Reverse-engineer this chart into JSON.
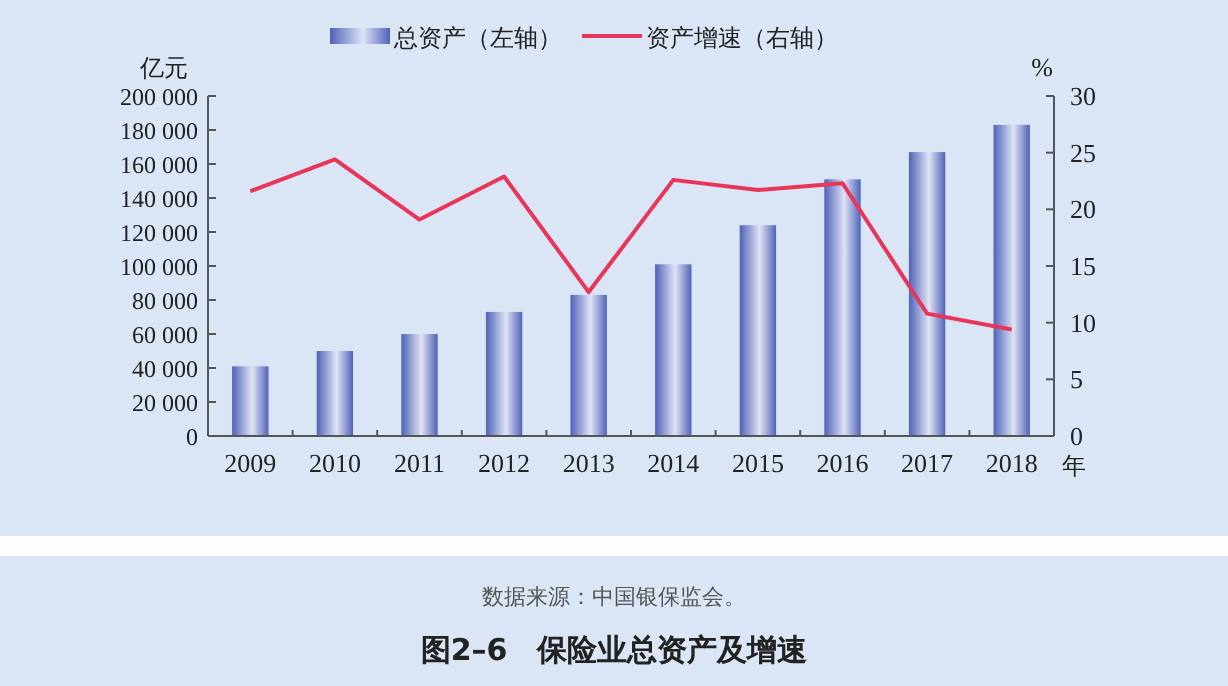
{
  "chart_data": {
    "type": "bar",
    "title": "图2–6　保险业总资产及增速",
    "annotations": [
      "数据来源：中国银保监会。"
    ],
    "categories": [
      "2009",
      "2010",
      "2011",
      "2012",
      "2013",
      "2014",
      "2015",
      "2016",
      "2017",
      "2018"
    ],
    "xlabel": "年",
    "ylabel": "亿元",
    "y2label": "%",
    "series": [
      {
        "name": "总资产（左轴）",
        "color": "#4f62b8",
        "values": [
          41000,
          50000,
          60000,
          73000,
          83000,
          101000,
          124000,
          151000,
          167000,
          183000
        ]
      },
      {
        "name": "资产增速（右轴）",
        "type": "line",
        "axis": "y2",
        "color": "#e8365a",
        "values": [
          21.6,
          24.4,
          19.1,
          22.9,
          12.7,
          22.6,
          21.7,
          22.3,
          10.8,
          9.4
        ]
      }
    ],
    "ylim": [
      0,
      200000
    ],
    "yticks": [
      0,
      {
        "value": 20000,
        "label": "20 000"
      },
      {
        "value": 40000,
        "label": "40 000"
      },
      {
        "value": 60000,
        "label": "60 000"
      },
      {
        "value": 80000,
        "label": "80 000"
      },
      {
        "value": 100000,
        "label": "100 000"
      },
      {
        "value": 120000,
        "label": "120 000"
      },
      {
        "value": 140000,
        "label": "140 000"
      },
      {
        "value": 160000,
        "label": "160 000"
      },
      {
        "value": 180000,
        "label": "180 000"
      },
      {
        "value": 200000,
        "label": "200 000"
      }
    ],
    "y2lim": [
      0,
      30
    ],
    "y2ticks": [
      0,
      5,
      10,
      15,
      20,
      25,
      30
    ],
    "legend": "top",
    "grid": false
  }
}
